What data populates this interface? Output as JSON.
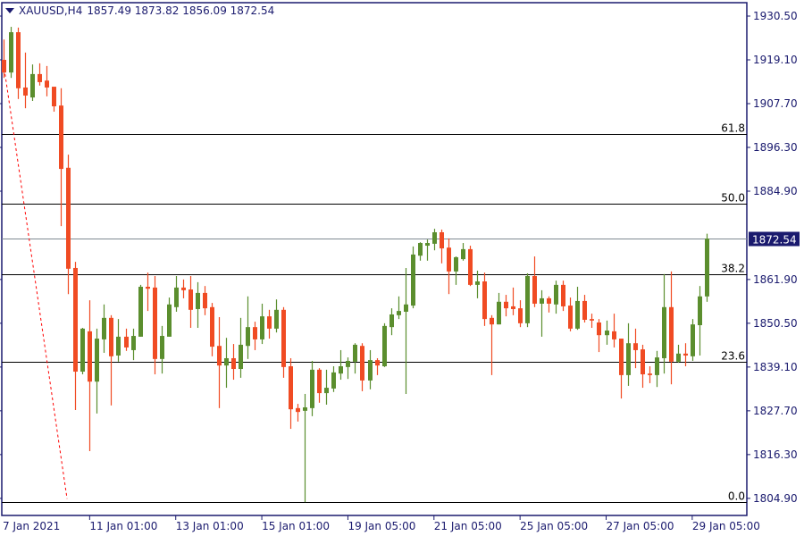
{
  "header": {
    "symbol": "XAUUSD,H4",
    "ohlc": "1857.49 1873.82 1856.09 1872.54",
    "menu_icon": "triangle-down-icon"
  },
  "colors": {
    "bull": "#5b8e2e",
    "bear": "#f04b23",
    "axis": "#1a1a6e",
    "price_label_bg": "#1a1a6e",
    "price_line": "#7f8a93",
    "fib_line": "#000000",
    "trendline": "#ff0000"
  },
  "chart_data": {
    "type": "candlestick",
    "ylim": [
      1803.9,
      1934.7
    ],
    "grid": false,
    "y_ticks": [
      "1930.50",
      "1919.10",
      "1907.70",
      "1896.30",
      "1884.90",
      "1861.90",
      "1850.50",
      "1839.10",
      "1827.70",
      "1816.30",
      "1804.90"
    ],
    "x_ticks": [
      {
        "bar": 0,
        "label": "7 Jan 2021"
      },
      {
        "bar": 12,
        "label": "11 Jan 01:00"
      },
      {
        "bar": 24,
        "label": "13 Jan 01:00"
      },
      {
        "bar": 36,
        "label": "15 Jan 01:00"
      },
      {
        "bar": 48,
        "label": "19 Jan 05:00"
      },
      {
        "bar": 60,
        "label": "21 Jan 05:00"
      },
      {
        "bar": 72,
        "label": "25 Jan 05:00"
      },
      {
        "bar": 84,
        "label": "27 Jan 05:00"
      },
      {
        "bar": 96,
        "label": "29 Jan 05:00"
      }
    ],
    "current_price": {
      "value": 1872.54,
      "label": "1872.54"
    },
    "fibonacci": [
      {
        "label": "61.8",
        "price": 1899.8
      },
      {
        "label": "50.0",
        "price": 1881.6
      },
      {
        "label": "38.2",
        "price": 1863.3
      },
      {
        "label": "23.6",
        "price": 1840.5
      },
      {
        "label": "0.0",
        "price": 1803.9
      }
    ],
    "trendline": {
      "style": "dashed",
      "from": {
        "bar": 0.1,
        "price": 1916.8
      },
      "to": {
        "bar": 8.85,
        "price": 1804.8
      }
    },
    "candles_ohlc": [
      [
        1919.1,
        1924.4,
        1914.4,
        1915.8
      ],
      [
        1915.8,
        1927.7,
        1914.4,
        1926.3
      ],
      [
        1926.3,
        1927.5,
        1908.9,
        1911.7
      ],
      [
        1911.9,
        1921.0,
        1906.5,
        1909.8
      ],
      [
        1909.3,
        1917.9,
        1908.4,
        1915.4
      ],
      [
        1915.4,
        1918.2,
        1912.4,
        1913.3
      ],
      [
        1913.7,
        1917.5,
        1909.6,
        1911.9
      ],
      [
        1912.1,
        1912.1,
        1905.6,
        1907.0
      ],
      [
        1907.2,
        1911.7,
        1875.8,
        1890.7
      ],
      [
        1891.0,
        1894.4,
        1858.1,
        1864.7
      ],
      [
        1864.9,
        1866.5,
        1827.9,
        1837.9
      ],
      [
        1837.9,
        1849.3,
        1837.2,
        1849.1
      ],
      [
        1848.4,
        1856.5,
        1817.2,
        1835.3
      ],
      [
        1835.3,
        1849.1,
        1827.0,
        1846.5
      ],
      [
        1846.3,
        1855.4,
        1842.8,
        1851.9
      ],
      [
        1851.9,
        1852.6,
        1829.1,
        1841.9
      ],
      [
        1842.1,
        1851.6,
        1840.5,
        1847.0
      ],
      [
        1847.0,
        1849.1,
        1843.3,
        1844.2
      ],
      [
        1843.5,
        1849.1,
        1840.9,
        1847.2
      ],
      [
        1847.0,
        1860.5,
        1847.0,
        1860.0
      ],
      [
        1860.0,
        1863.7,
        1853.7,
        1859.5
      ],
      [
        1859.8,
        1862.8,
        1837.2,
        1841.2
      ],
      [
        1841.2,
        1849.8,
        1837.4,
        1847.2
      ],
      [
        1847.0,
        1857.2,
        1847.0,
        1855.4
      ],
      [
        1854.7,
        1862.8,
        1853.5,
        1859.8
      ],
      [
        1859.8,
        1861.9,
        1857.0,
        1859.1
      ],
      [
        1859.3,
        1862.8,
        1849.3,
        1854.0
      ],
      [
        1854.2,
        1861.2,
        1849.3,
        1858.4
      ],
      [
        1858.4,
        1860.2,
        1852.6,
        1854.4
      ],
      [
        1854.7,
        1855.8,
        1841.9,
        1844.4
      ],
      [
        1844.6,
        1852.1,
        1828.4,
        1839.5
      ],
      [
        1839.5,
        1846.7,
        1833.7,
        1841.4
      ],
      [
        1841.4,
        1845.1,
        1835.8,
        1838.6
      ],
      [
        1838.6,
        1851.9,
        1836.3,
        1844.9
      ],
      [
        1844.6,
        1857.5,
        1841.2,
        1849.5
      ],
      [
        1849.5,
        1850.9,
        1843.5,
        1846.3
      ],
      [
        1846.3,
        1855.6,
        1845.1,
        1852.3
      ],
      [
        1852.3,
        1854.0,
        1846.5,
        1849.1
      ],
      [
        1849.1,
        1856.7,
        1848.1,
        1854.0
      ],
      [
        1854.0,
        1854.7,
        1836.3,
        1839.1
      ],
      [
        1839.3,
        1841.4,
        1823.0,
        1828.1
      ],
      [
        1828.4,
        1829.5,
        1824.9,
        1827.4
      ],
      [
        1827.7,
        1832.1,
        1803.9,
        1828.6
      ],
      [
        1828.4,
        1840.7,
        1826.3,
        1838.4
      ],
      [
        1838.4,
        1838.8,
        1829.8,
        1832.3
      ],
      [
        1832.3,
        1838.4,
        1829.3,
        1833.7
      ],
      [
        1833.5,
        1839.3,
        1832.6,
        1837.7
      ],
      [
        1837.4,
        1843.5,
        1835.8,
        1839.3
      ],
      [
        1839.1,
        1841.6,
        1836.0,
        1840.7
      ],
      [
        1840.5,
        1845.3,
        1837.4,
        1844.9
      ],
      [
        1844.6,
        1845.3,
        1832.8,
        1835.6
      ],
      [
        1835.6,
        1843.5,
        1833.3,
        1840.9
      ],
      [
        1840.9,
        1841.4,
        1837.0,
        1839.5
      ],
      [
        1839.3,
        1850.5,
        1839.1,
        1849.8
      ],
      [
        1849.5,
        1854.4,
        1847.4,
        1852.8
      ],
      [
        1852.6,
        1857.5,
        1851.6,
        1853.7
      ],
      [
        1853.5,
        1864.9,
        1832.1,
        1855.4
      ],
      [
        1855.1,
        1870.5,
        1854.4,
        1868.4
      ],
      [
        1868.1,
        1871.6,
        1866.8,
        1871.4
      ],
      [
        1870.7,
        1872.3,
        1866.8,
        1871.4
      ],
      [
        1871.2,
        1875.1,
        1869.5,
        1874.2
      ],
      [
        1874.2,
        1874.9,
        1866.1,
        1870.0
      ],
      [
        1870.2,
        1872.6,
        1858.1,
        1864.0
      ],
      [
        1864.0,
        1867.9,
        1860.5,
        1867.7
      ],
      [
        1867.2,
        1871.4,
        1866.8,
        1869.8
      ],
      [
        1869.8,
        1870.7,
        1860.2,
        1860.5
      ],
      [
        1860.5,
        1864.2,
        1857.0,
        1861.4
      ],
      [
        1861.4,
        1863.7,
        1849.8,
        1851.6
      ],
      [
        1851.9,
        1852.6,
        1837.0,
        1850.2
      ],
      [
        1850.2,
        1858.4,
        1850.2,
        1856.1
      ],
      [
        1856.1,
        1857.9,
        1852.3,
        1854.4
      ],
      [
        1854.9,
        1859.8,
        1852.6,
        1854.2
      ],
      [
        1854.4,
        1856.5,
        1849.5,
        1850.5
      ],
      [
        1850.5,
        1863.5,
        1849.5,
        1862.8
      ],
      [
        1862.8,
        1867.9,
        1854.7,
        1855.6
      ],
      [
        1855.6,
        1859.1,
        1847.0,
        1857.0
      ],
      [
        1857.0,
        1857.5,
        1853.3,
        1855.6
      ],
      [
        1855.4,
        1861.6,
        1853.0,
        1860.5
      ],
      [
        1860.5,
        1861.6,
        1853.7,
        1854.9
      ],
      [
        1855.1,
        1857.2,
        1848.4,
        1849.1
      ],
      [
        1849.1,
        1860.0,
        1848.8,
        1856.3
      ],
      [
        1856.3,
        1857.9,
        1850.7,
        1851.4
      ],
      [
        1851.6,
        1853.0,
        1849.3,
        1851.2
      ],
      [
        1850.7,
        1851.6,
        1843.0,
        1847.4
      ],
      [
        1847.4,
        1851.2,
        1844.9,
        1848.6
      ],
      [
        1848.4,
        1853.0,
        1844.2,
        1846.3
      ],
      [
        1846.5,
        1846.5,
        1830.9,
        1837.0
      ],
      [
        1837.0,
        1850.5,
        1834.2,
        1845.3
      ],
      [
        1845.3,
        1849.1,
        1838.8,
        1843.5
      ],
      [
        1843.7,
        1844.9,
        1833.7,
        1837.2
      ],
      [
        1837.4,
        1839.3,
        1834.9,
        1837.0
      ],
      [
        1837.0,
        1843.3,
        1833.9,
        1841.6
      ],
      [
        1841.4,
        1863.3,
        1837.4,
        1854.7
      ],
      [
        1854.7,
        1864.0,
        1834.6,
        1840.5
      ],
      [
        1840.5,
        1844.9,
        1840.2,
        1842.6
      ],
      [
        1842.6,
        1845.3,
        1839.3,
        1842.1
      ],
      [
        1841.9,
        1851.6,
        1840.7,
        1850.2
      ],
      [
        1850.0,
        1860.2,
        1842.1,
        1857.5
      ],
      [
        1857.49,
        1873.82,
        1856.09,
        1872.54
      ]
    ]
  }
}
